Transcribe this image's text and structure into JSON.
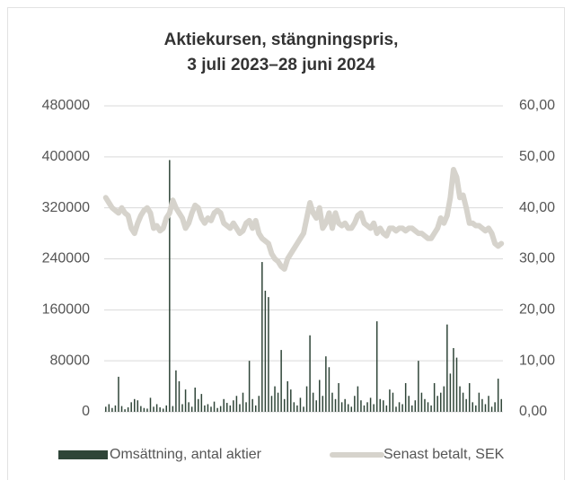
{
  "chart_data": {
    "type": "bar",
    "title": [
      "Aktiekursen, stängningspris,",
      "3 juli 2023–28 juni 2024"
    ],
    "categories": [
      null,
      null,
      null,
      null,
      null,
      null,
      null,
      null,
      null,
      null,
      null,
      null,
      null,
      null,
      null,
      null,
      null,
      null,
      null,
      null,
      null,
      null,
      null,
      null,
      null,
      null,
      null,
      null,
      null,
      null,
      null,
      null,
      null,
      null,
      null,
      null,
      null,
      null,
      null,
      null,
      null,
      null,
      null,
      null,
      null,
      null,
      null,
      null,
      null,
      null,
      null,
      null,
      null,
      null,
      null,
      null,
      null,
      null,
      null,
      null,
      null,
      null,
      null,
      null,
      null,
      null,
      null,
      null,
      null,
      null,
      null,
      null,
      null,
      null,
      null,
      null,
      null,
      null,
      null,
      null,
      null,
      null,
      null,
      null,
      null,
      null,
      null,
      null,
      null,
      null,
      null,
      null,
      null,
      null,
      null,
      null,
      null,
      null,
      null,
      null,
      null,
      null,
      null,
      null,
      null,
      null,
      null,
      null,
      null,
      null,
      null,
      null,
      null,
      null,
      null,
      null,
      null,
      null,
      null,
      null,
      null,
      null,
      null,
      null,
      null
    ],
    "series": [
      {
        "name": "Omsättning, antal aktier",
        "type": "bar",
        "color": "#2f4538",
        "values": [
          8000,
          12000,
          6000,
          10000,
          55000,
          9000,
          4000,
          7000,
          15000,
          20000,
          18000,
          9000,
          6000,
          5000,
          22000,
          8000,
          12000,
          7000,
          5000,
          10000,
          395000,
          9000,
          65000,
          48000,
          12000,
          35000,
          15000,
          8000,
          38000,
          20000,
          28000,
          10000,
          12000,
          8000,
          16000,
          6000,
          9000,
          20000,
          14000,
          10000,
          18000,
          25000,
          12000,
          30000,
          15000,
          80000,
          20000,
          10000,
          25000,
          235000,
          190000,
          180000,
          25000,
          40000,
          30000,
          97000,
          20000,
          48000,
          35000,
          15000,
          10000,
          22000,
          8000,
          40000,
          120000,
          30000,
          18000,
          50000,
          25000,
          87000,
          70000,
          30000,
          20000,
          45000,
          15000,
          20000,
          12000,
          8000,
          25000,
          40000,
          18000,
          10000,
          15000,
          22000,
          12000,
          142000,
          20000,
          18000,
          10000,
          35000,
          30000,
          8000,
          15000,
          12000,
          45000,
          25000,
          10000,
          18000,
          80000,
          30000,
          20000,
          15000,
          10000,
          45000,
          25000,
          30000,
          40000,
          137000,
          60000,
          100000,
          85000,
          40000,
          30000,
          20000,
          45000,
          15000,
          10000,
          30000,
          20000,
          12000,
          25000,
          8000,
          15000,
          52000,
          20000
        ]
      },
      {
        "name": "Senast betalt, SEK",
        "type": "line",
        "axis": "y2",
        "color": "#d6d3cc",
        "values": [
          42,
          41,
          40,
          39.5,
          39,
          40,
          39,
          38.5,
          36,
          35,
          37,
          38.5,
          39.5,
          40,
          39,
          36,
          36.5,
          35.5,
          36,
          38,
          39,
          41.5,
          40,
          39,
          38,
          36,
          37,
          39,
          40.5,
          40,
          38,
          37,
          38,
          37.5,
          39,
          39.5,
          39,
          37,
          36.5,
          36,
          37,
          36,
          35,
          35.5,
          37,
          37.5,
          36,
          37.5,
          35,
          34,
          33.5,
          33,
          31,
          30,
          29.5,
          28.5,
          28,
          30,
          31,
          32,
          33,
          34,
          35,
          38,
          41,
          39,
          38,
          40,
          36,
          37,
          39,
          36,
          39,
          37,
          36.5,
          37,
          36,
          36,
          37,
          38.5,
          39,
          37,
          36.5,
          36,
          37,
          35,
          36,
          35,
          34.5,
          36,
          36,
          35.5,
          36,
          36,
          35.5,
          36,
          36,
          35.5,
          35,
          35,
          34.5,
          34,
          34,
          35,
          36,
          38,
          37,
          38.5,
          42,
          47.5,
          46,
          42,
          42.5,
          40,
          37,
          37,
          36.5,
          36.5,
          36,
          35.5,
          36,
          35,
          33,
          32.5,
          33
        ]
      }
    ],
    "ylim": [
      0,
      480000
    ],
    "yticks": [
      0,
      80000,
      160000,
      240000,
      320000,
      400000,
      480000
    ],
    "y2lim": [
      0,
      60
    ],
    "y2ticks": [
      {
        "value": 0,
        "label": "0,00"
      },
      {
        "value": 10,
        "label": "10,00"
      },
      {
        "value": 20,
        "label": "20,00"
      },
      {
        "value": 30,
        "label": "30,00"
      },
      {
        "value": 40,
        "label": "40,00"
      },
      {
        "value": 50,
        "label": "50,00"
      },
      {
        "value": 60,
        "label": "60,00"
      }
    ],
    "grid": true,
    "legend": "bottom"
  }
}
